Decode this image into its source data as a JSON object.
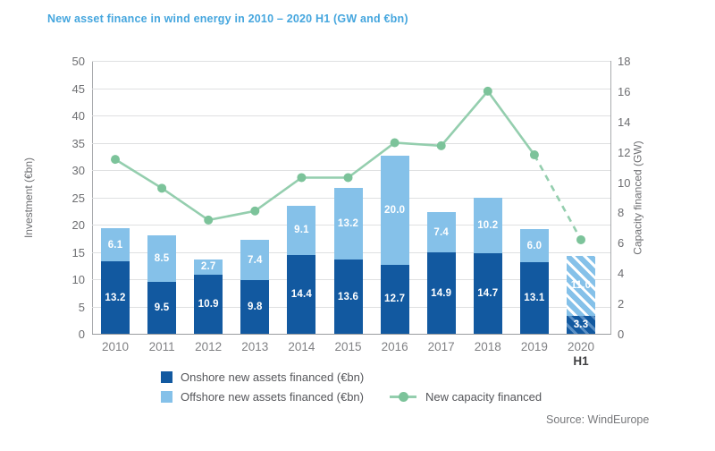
{
  "title": "New asset finance in wind energy in 2010 – 2020 H1 (GW and €bn)",
  "source": "Source: WindEurope",
  "colors": {
    "title": "#45a6de",
    "onshore_bar": "#1259a0",
    "offshore_bar": "#85c1e9",
    "capacity_line": "#94ceae",
    "capacity_marker": "#7cc39a",
    "gridline": "#dfe0e1",
    "tick_text": "#6d6e71",
    "bar_label_text": "#ffffff"
  },
  "legend": {
    "onshore_label": "Onshore new assets financed (€bn)",
    "offshore_label": "Offshore new assets financed (€bn)",
    "capacity_label": "New capacity financed"
  },
  "chart_data": {
    "type": "bar",
    "subtype": "stacked-bar-with-line",
    "title": "New asset finance in wind energy in 2010 – 2020 H1 (GW and €bn)",
    "categories": [
      "2010",
      "2011",
      "2012",
      "2013",
      "2014",
      "2015",
      "2016",
      "2017",
      "2018",
      "2019",
      "2020"
    ],
    "last_category_suffix": "H1",
    "hatched_category_index": 10,
    "series": [
      {
        "name": "Onshore new assets financed (€bn)",
        "type": "bar",
        "axis": "left",
        "values": [
          13.2,
          9.5,
          10.9,
          9.8,
          14.4,
          13.6,
          12.7,
          14.9,
          14.7,
          13.1,
          3.3
        ]
      },
      {
        "name": "Offshore new assets financed (€bn)",
        "type": "bar",
        "axis": "left",
        "values": [
          6.1,
          8.5,
          2.7,
          7.4,
          9.1,
          13.2,
          20.0,
          7.4,
          10.2,
          6.0,
          11.0
        ]
      },
      {
        "name": "New capacity financed",
        "type": "line",
        "axis": "right",
        "dashed_from_index": 9,
        "values": [
          11.5,
          9.6,
          7.5,
          8.1,
          10.3,
          10.3,
          12.6,
          12.4,
          16.0,
          11.8,
          6.2
        ]
      }
    ],
    "left_axis": {
      "label": "Investment (€bn)",
      "min": 0,
      "max": 50,
      "step": 5
    },
    "right_axis": {
      "label": "Capacity financed (GW)",
      "min": 0,
      "max": 18,
      "step": 2
    },
    "grid": true,
    "legend_position": "bottom"
  }
}
